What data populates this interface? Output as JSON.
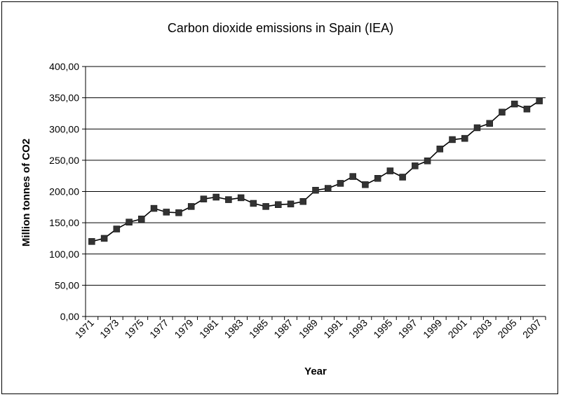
{
  "chart_data": {
    "type": "line",
    "title": "Carbon dioxide emissions in Spain (IEA)",
    "xlabel": "Year",
    "ylabel": "Million tonnes of CO2",
    "ylim": [
      0,
      400
    ],
    "ytick_labels": [
      "0,00",
      "50,00",
      "100,00",
      "150,00",
      "200,00",
      "250,00",
      "300,00",
      "350,00",
      "400,00"
    ],
    "categories": [
      "1971",
      "1972",
      "1973",
      "1974",
      "1975",
      "1976",
      "1977",
      "1978",
      "1979",
      "1980",
      "1981",
      "1982",
      "1983",
      "1984",
      "1985",
      "1986",
      "1987",
      "1988",
      "1989",
      "1990",
      "1991",
      "1992",
      "1993",
      "1994",
      "1995",
      "1996",
      "1997",
      "1998",
      "1999",
      "2000",
      "2001",
      "2002",
      "2003",
      "2004",
      "2005",
      "2006",
      "2007"
    ],
    "xtick_labels": [
      "1971",
      "1973",
      "1975",
      "1977",
      "1979",
      "1981",
      "1983",
      "1985",
      "1987",
      "1989",
      "1991",
      "1993",
      "1995",
      "1997",
      "1999",
      "2001",
      "2003",
      "2005",
      "2007"
    ],
    "series": [
      {
        "values": [
          120,
          125,
          140,
          151,
          156,
          173,
          167,
          166,
          176,
          188,
          191,
          187,
          190,
          181,
          176,
          179,
          180,
          184,
          202,
          205,
          213,
          224,
          211,
          221,
          233,
          223,
          241,
          249,
          268,
          283,
          285,
          302,
          309,
          327,
          340,
          332,
          345
        ]
      }
    ],
    "grid": true,
    "legend": "none",
    "line_color": "#000000",
    "marker_color": "#333333",
    "marker": "square"
  }
}
